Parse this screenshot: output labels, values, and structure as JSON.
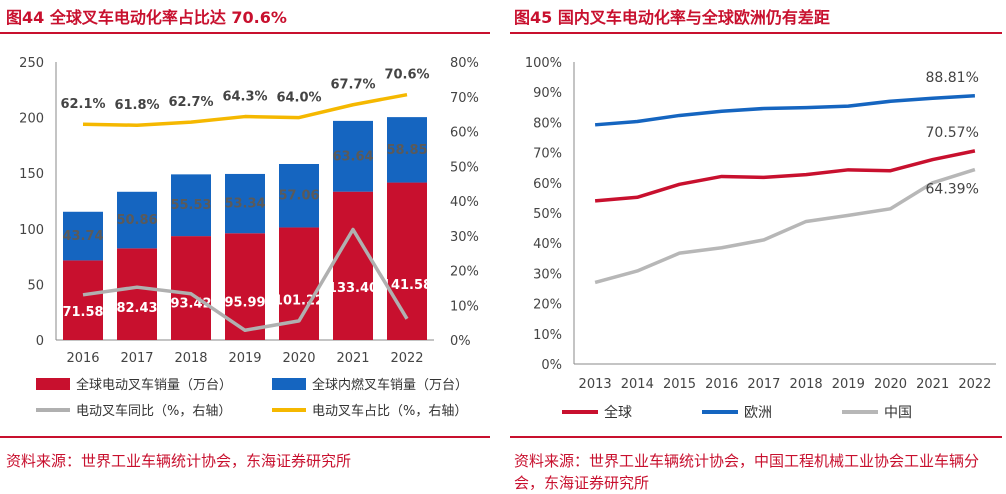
{
  "left": {
    "title": "图44  全球叉车电动化率占比达 70.6%",
    "source": "资料来源：世界工业车辆统计协会，东海证券研究所",
    "chart_data": {
      "type": "bar",
      "stacked": true,
      "categories": [
        "2016",
        "2017",
        "2018",
        "2019",
        "2020",
        "2021",
        "2022"
      ],
      "series": [
        {
          "name": "全球电动叉车销量（万台）",
          "axis": "left",
          "color": "#c8102e",
          "values": [
            71.58,
            82.43,
            93.42,
            95.99,
            101.22,
            133.4,
            141.58
          ],
          "labels": [
            "71.58",
            "82.43",
            "93.42",
            "95.99",
            "101.22",
            "133.40",
            "141.58"
          ]
        },
        {
          "name": "全球内燃叉车销量（万台）",
          "axis": "left",
          "color": "#1565c0",
          "values": [
            43.74,
            50.86,
            55.53,
            53.34,
            57.06,
            63.64,
            58.85
          ],
          "labels": [
            "43.74",
            "50.86",
            "55.53",
            "53.34",
            "57.06",
            "63.64",
            "58.85"
          ]
        },
        {
          "name": "电动叉车同比（%，右轴）",
          "axis": "right",
          "type": "line",
          "color": "#b0b0b0",
          "values": [
            13.0,
            15.2,
            13.3,
            2.8,
            5.5,
            31.8,
            6.1
          ]
        },
        {
          "name": "电动叉车占比（%，右轴）",
          "axis": "right",
          "type": "line",
          "color": "#f5b800",
          "values": [
            62.1,
            61.8,
            62.7,
            64.3,
            64.0,
            67.7,
            70.6
          ],
          "labels": [
            "62.1%",
            "61.8%",
            "62.7%",
            "64.3%",
            "64.0%",
            "67.7%",
            "70.6%"
          ]
        }
      ],
      "y_left": {
        "lim": [
          0,
          250
        ],
        "ticks": [
          "0",
          "50",
          "100",
          "150",
          "200",
          "250"
        ]
      },
      "y_right": {
        "lim": [
          0,
          80
        ],
        "ticks": [
          "0%",
          "10%",
          "20%",
          "30%",
          "40%",
          "50%",
          "60%",
          "70%",
          "80%"
        ]
      },
      "legend": "bottom",
      "grid": false
    }
  },
  "right": {
    "title": "图45  国内叉车电动化率与全球欧洲仍有差距",
    "source": "资料来源：世界工业车辆统计协会，中国工程机械工业协会工业车辆分会，东海证券研究所",
    "chart_data": {
      "type": "line",
      "x": [
        "2013",
        "2014",
        "2015",
        "2016",
        "2017",
        "2018",
        "2019",
        "2020",
        "2021",
        "2022"
      ],
      "series": [
        {
          "name": "全球",
          "color": "#c8102e",
          "values": [
            54.0,
            55.2,
            59.5,
            62.1,
            61.8,
            62.7,
            64.3,
            64.0,
            67.7,
            70.57
          ]
        },
        {
          "name": "欧洲",
          "color": "#1565c0",
          "values": [
            79.2,
            80.3,
            82.3,
            83.7,
            84.6,
            84.9,
            85.4,
            87.0,
            88.0,
            88.81
          ]
        },
        {
          "name": "中国",
          "color": "#b7b7b7",
          "values": [
            27.0,
            30.8,
            36.7,
            38.5,
            41.1,
            47.2,
            49.2,
            51.4,
            60.0,
            64.39
          ]
        }
      ],
      "end_labels": [
        "70.57%",
        "88.81%",
        "64.39%"
      ],
      "ylim": [
        0,
        100
      ],
      "yticks": [
        "0%",
        "10%",
        "20%",
        "30%",
        "40%",
        "50%",
        "60%",
        "70%",
        "80%",
        "90%",
        "100%"
      ],
      "legend": "bottom",
      "grid": false
    }
  }
}
